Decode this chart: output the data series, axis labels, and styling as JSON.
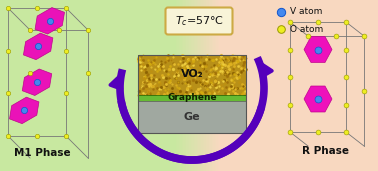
{
  "bg_left_color": "#c8e8a0",
  "bg_right_color": "#f8d8c0",
  "m1_label": "M1 Phase",
  "r_label": "R Phase",
  "vo2_label": "VO₂",
  "graphene_label": "Graphene",
  "ge_label": "Ge",
  "v_atom_label": "V atom",
  "o_atom_label": "O atom",
  "v_atom_color": "#4488ee",
  "v_atom_edge": "#1155cc",
  "o_atom_color": "#eeee22",
  "o_atom_edge": "#999900",
  "arrow_color": "#5500bb",
  "crystal_edge_color": "#777777",
  "magenta_color": "#ee00bb",
  "magenta_edge": "#bb0088",
  "vo2_color": "#b89018",
  "graphene_color": "#66bb33",
  "ge_color": "#a0a8a0",
  "box_bg": "#f8f4d8",
  "box_edge": "#ccaa44",
  "tc_text": "$\\mathit{T_c}$=57°C",
  "figw": 3.78,
  "figh": 1.71,
  "dpi": 100
}
